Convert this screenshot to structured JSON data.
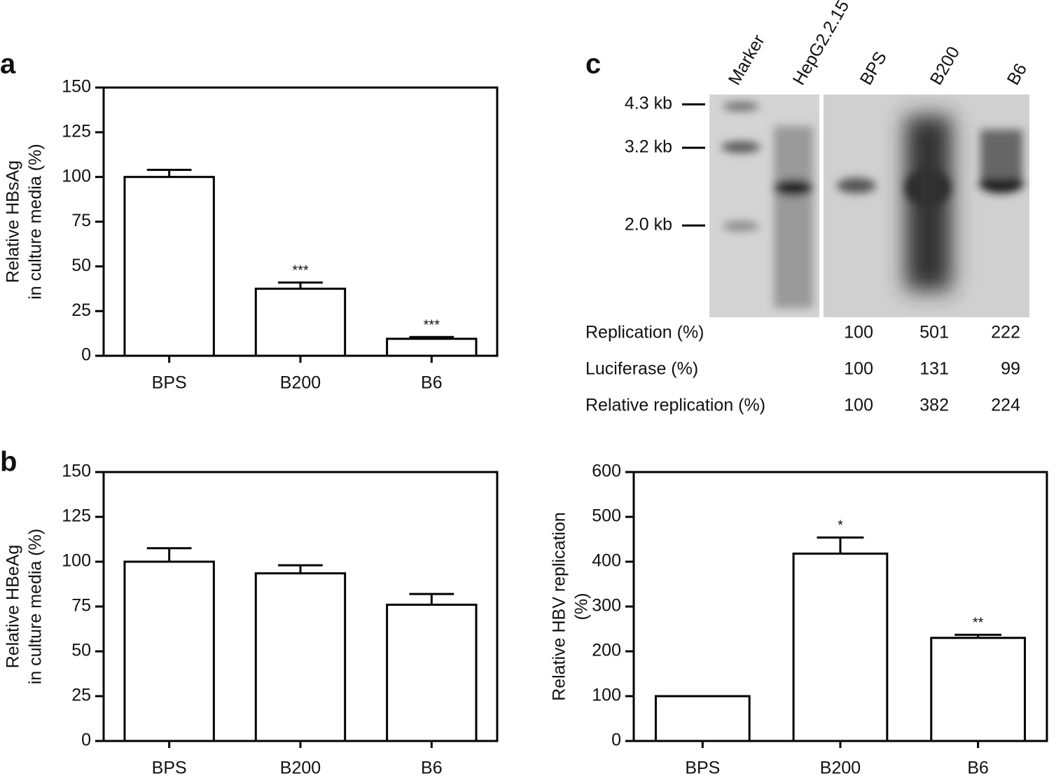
{
  "chart_data": [
    {
      "type": "bar",
      "panel": "a",
      "ylabel": [
        "Relative HBsAg",
        "in culture media (%)"
      ],
      "categories": [
        "BPS",
        "B200",
        "B6"
      ],
      "values": [
        100,
        37.5,
        9.5
      ],
      "errors": [
        4,
        3.5,
        1
      ],
      "annotations": [
        null,
        "***",
        "***"
      ],
      "color": "#ffffff",
      "ylim": [
        0,
        150
      ],
      "yticks": [
        0,
        25,
        50,
        75,
        100,
        125,
        150
      ]
    },
    {
      "type": "bar",
      "panel": "b",
      "ylabel": [
        "Relative HBeAg",
        "in culture media (%)"
      ],
      "categories": [
        "BPS",
        "B200",
        "B6"
      ],
      "values": [
        100,
        93.5,
        76
      ],
      "errors": [
        7.5,
        4.5,
        6
      ],
      "annotations": [
        null,
        null,
        null
      ],
      "color": "#ffffff",
      "ylim": [
        0,
        150
      ],
      "yticks": [
        0,
        25,
        50,
        75,
        100,
        125,
        150
      ]
    },
    {
      "type": "bar",
      "ylabel": [
        "Relative HBV replication",
        "(%)"
      ],
      "categories": [
        "BPS",
        "B200",
        "B6"
      ],
      "values": [
        100,
        418,
        230
      ],
      "errors": [
        null,
        36,
        7
      ],
      "annotations": [
        null,
        "*",
        "**"
      ],
      "color": "#ffffff",
      "ylim": [
        0,
        600
      ],
      "yticks": [
        0,
        100,
        200,
        300,
        400,
        500,
        600
      ]
    }
  ],
  "blot": {
    "panel": "c",
    "lanes": [
      "Marker",
      "HepG2.2.15",
      "BPS",
      "B200",
      "B6"
    ],
    "markers": [
      "4.3 kb",
      "3.2 kb",
      "2.0 kb"
    ],
    "table": [
      {
        "label": "Replication (%)",
        "values": [
          100,
          501,
          222
        ]
      },
      {
        "label": "Luciferase (%)",
        "values": [
          100,
          131,
          99
        ]
      },
      {
        "label": "Relative replication (%)",
        "values": [
          100,
          382,
          224
        ]
      }
    ]
  }
}
